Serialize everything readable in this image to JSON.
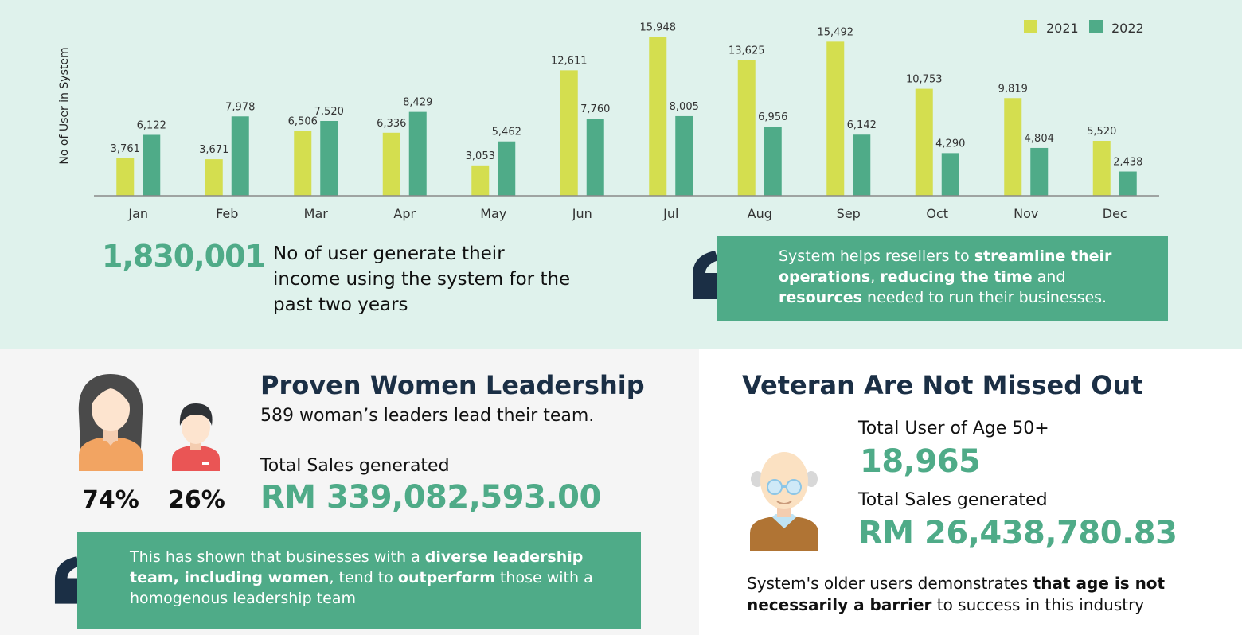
{
  "chart_data": {
    "type": "bar",
    "ylabel": "No of User in System",
    "categories": [
      "Jan",
      "Feb",
      "Mar",
      "Apr",
      "May",
      "Jun",
      "Jul",
      "Aug",
      "Sep",
      "Oct",
      "Nov",
      "Dec"
    ],
    "series": [
      {
        "name": "2021",
        "color": "#d4de4f",
        "values": [
          3761,
          3671,
          6506,
          6336,
          3053,
          12611,
          15948,
          13625,
          15492,
          10753,
          9819,
          5520
        ],
        "labels": [
          "3,761",
          "3,671",
          "6,506",
          "6,336",
          "3,053",
          "12,611",
          "15,948",
          "13,625",
          "15,492",
          "10,753",
          "9,819",
          "5,520"
        ]
      },
      {
        "name": "2022",
        "color": "#4fab88",
        "values": [
          6122,
          7978,
          7520,
          8429,
          5462,
          7760,
          8005,
          6956,
          6142,
          4290,
          4804,
          2438
        ],
        "labels": [
          "6,122",
          "7,978",
          "7,520",
          "8,429",
          "5,462",
          "7,760",
          "8,005",
          "6,956",
          "6,142",
          "4,290",
          "4,804",
          "2,438"
        ]
      }
    ],
    "legend": "top-right",
    "grid": false
  },
  "summary": {
    "total_users": "1,830,001",
    "description": "No of user generate their income using the system for the past two years"
  },
  "quote_top": {
    "t1": "System helps resellers to ",
    "b1": "streamline their operations",
    "t2": ", ",
    "b2": "reducing the time",
    "t3": " and ",
    "b3": "resources",
    "t4": " needed to run their businesses."
  },
  "women": {
    "title": "Proven Women Leadership",
    "subtitle": "589 woman’s leaders lead their team.",
    "pct_women": "74%",
    "pct_men": "26%",
    "sales_label": "Total Sales generated",
    "sales_value": "RM 339,082,593.00",
    "quote": {
      "t1": "This has shown that businesses with a ",
      "b1": "diverse leadership team, including women",
      "t2": ", tend to ",
      "b2": "outperform",
      "t3": " those with a homogenous leadership team"
    }
  },
  "veteran": {
    "title": "Veteran Are Not Missed Out",
    "users_label": "Total User of Age 50+",
    "users_value": "18,965",
    "sales_label": "Total Sales generated",
    "sales_value": "RM 26,438,780.83",
    "note": {
      "t1": "System's older users demonstrates ",
      "b1": "that age is not necessarily a barrier",
      "t2": " to success in this industry"
    }
  },
  "colors": {
    "accent_green": "#4fab88",
    "accent_lime": "#d4de4f",
    "dark_navy": "#1b2f45",
    "top_bg": "#dff2ec"
  }
}
